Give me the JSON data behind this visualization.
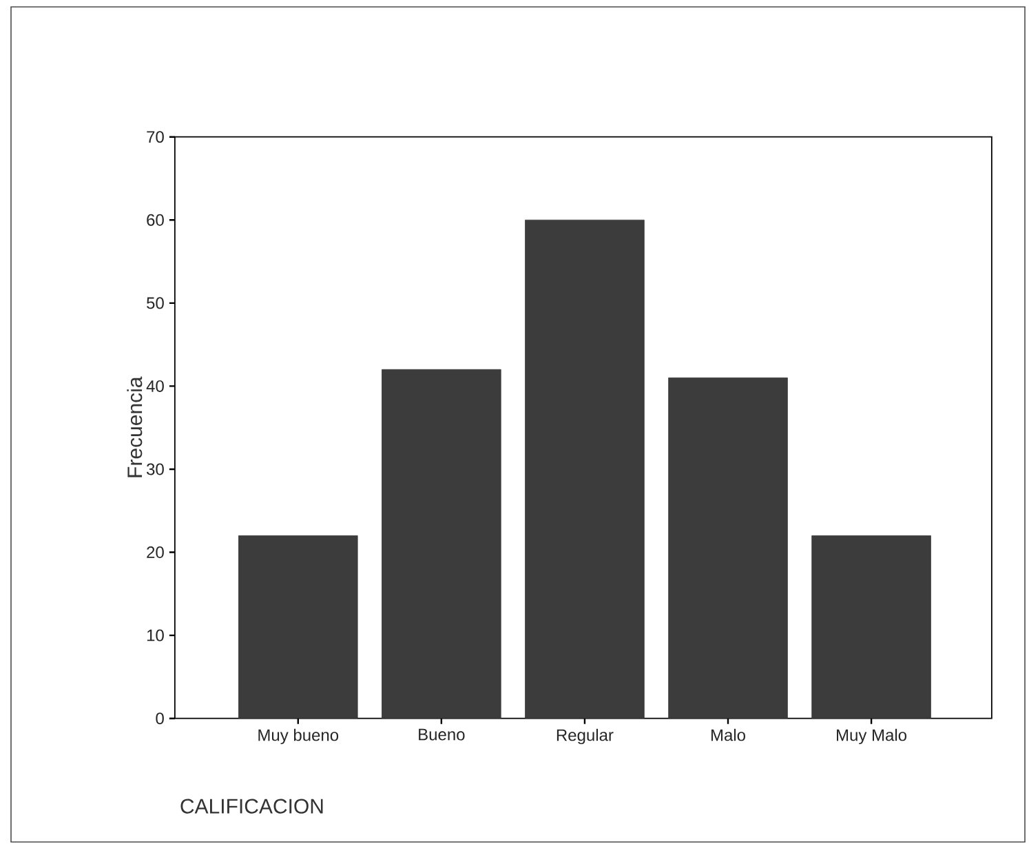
{
  "chart_data": {
    "type": "bar",
    "categories": [
      "Muy bueno",
      "Bueno",
      "Regular",
      "Malo",
      "Muy Malo"
    ],
    "values": [
      22,
      42,
      60,
      41,
      22
    ],
    "color": "#3c3c3c",
    "xlabel": "CALIFICACION",
    "ylabel": "Frecuencia",
    "ylim": [
      0,
      70
    ],
    "yticks": [
      0,
      10,
      20,
      30,
      40,
      50,
      60,
      70
    ],
    "grid": false
  }
}
